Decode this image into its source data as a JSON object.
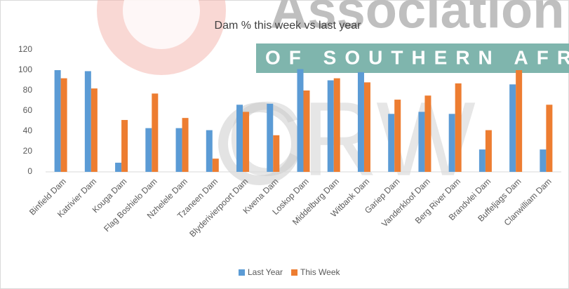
{
  "chart_data": {
    "type": "bar",
    "title": "Dam % this week vs last year",
    "annotations": [
      "Association",
      "OF SOUTHERN AFRICA",
      "CRW"
    ],
    "categories": [
      "Binfield Dam",
      "Katrivier Dam",
      "Kouga Dam",
      "Flag Boshielo Dam",
      "Nzhelele Dam",
      "Tzaneen Dam",
      "Blyderivierpoort Dam",
      "Kwena Dam",
      "Loskop Dam",
      "Middelburg Dam",
      "Witbank Dam",
      "Gariep Dam",
      "Vanderkloof Dam",
      "Berg River Dam",
      "Brandvlei Dam",
      "Buffeljags Dam",
      "Clanwilliam Dam"
    ],
    "series": [
      {
        "name": "Last Year",
        "color": "#5b9bd5",
        "values": [
          100,
          99,
          9,
          43,
          43,
          41,
          66,
          67,
          101,
          90,
          98,
          57,
          59,
          57,
          22,
          86,
          22
        ]
      },
      {
        "name": "This Week",
        "color": "#ed7d31",
        "values": [
          92,
          82,
          51,
          77,
          53,
          13,
          59,
          36,
          80,
          92,
          88,
          71,
          75,
          87,
          41,
          100,
          66
        ]
      }
    ],
    "ylim": [
      0,
      120
    ],
    "yticks": [
      0,
      20,
      40,
      60,
      80,
      100,
      120
    ],
    "grid": false,
    "legend": "bottom"
  }
}
